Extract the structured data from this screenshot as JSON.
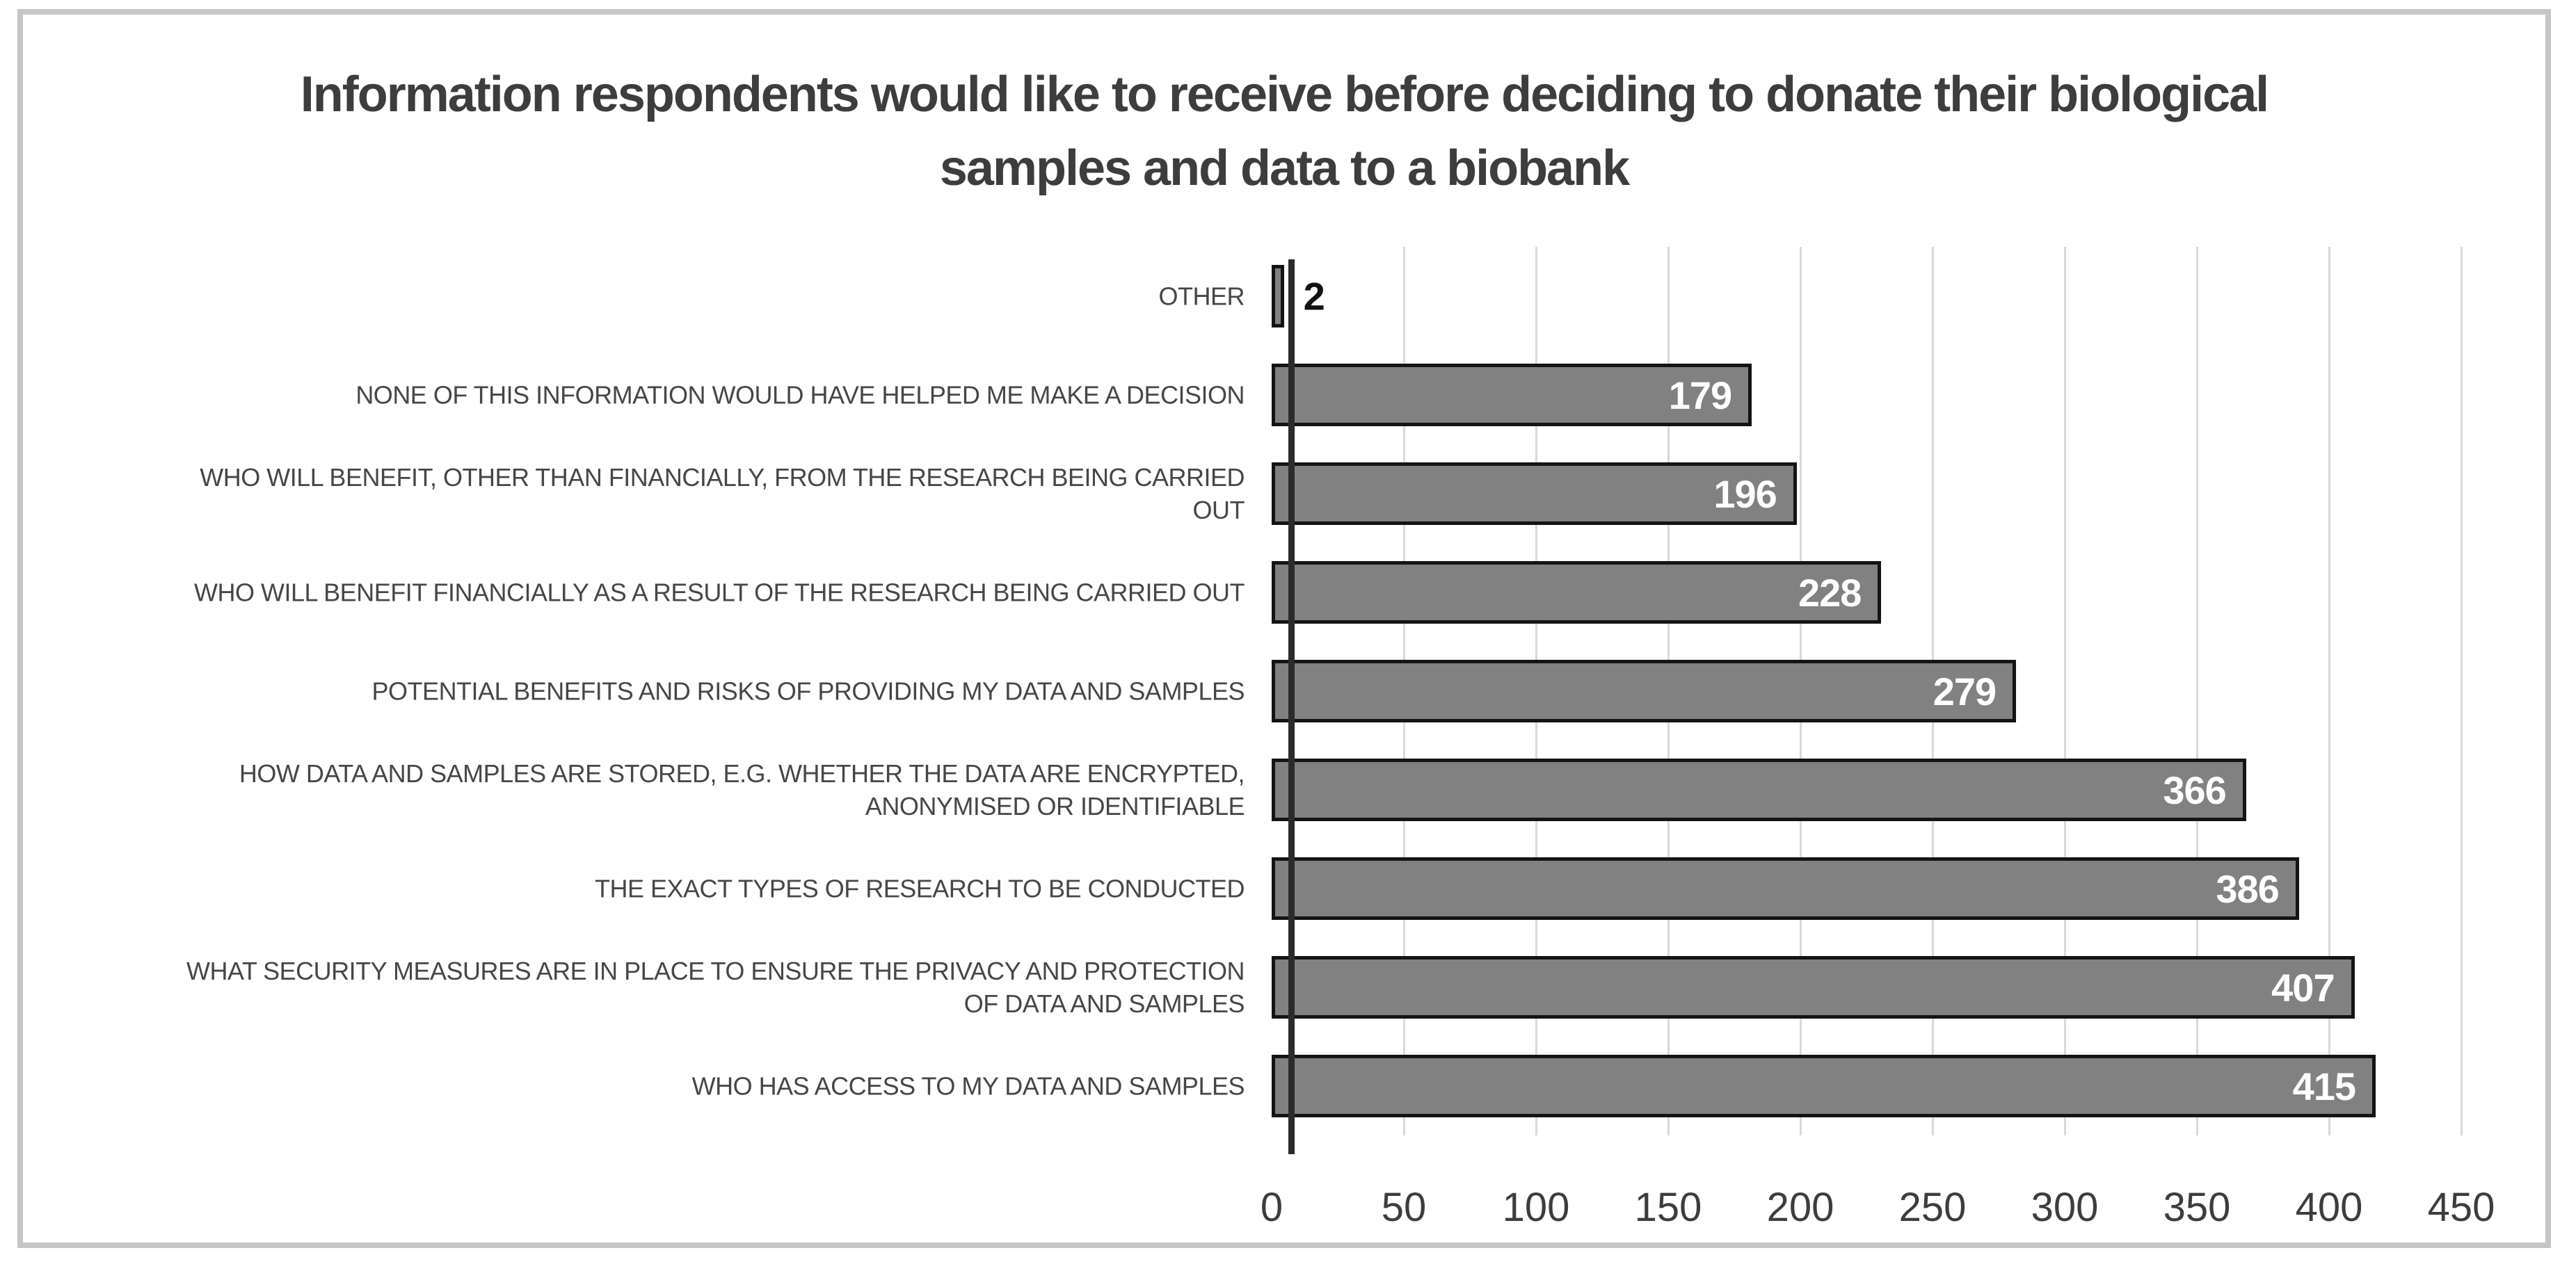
{
  "chart_data": {
    "type": "bar",
    "orientation": "horizontal",
    "title": "Information respondents would like to receive before deciding to donate their biological samples and data to a biobank",
    "categories": [
      "OTHER",
      "NONE OF THIS INFORMATION WOULD HAVE HELPED ME MAKE A DECISION",
      "WHO WILL BENEFIT, OTHER THAN FINANCIALLY, FROM THE RESEARCH BEING CARRIED OUT",
      "WHO WILL BENEFIT FINANCIALLY AS A RESULT OF THE RESEARCH BEING CARRIED OUT",
      "POTENTIAL BENEFITS AND RISKS OF PROVIDING MY DATA AND SAMPLES",
      "HOW DATA AND SAMPLES ARE STORED, E.G. WHETHER THE DATA ARE ENCRYPTED, ANONYMISED OR IDENTIFIABLE",
      "THE EXACT TYPES OF RESEARCH TO BE CONDUCTED",
      "WHAT SECURITY MEASURES ARE IN PLACE TO ENSURE THE PRIVACY AND PROTECTION OF DATA AND SAMPLES",
      "WHO HAS ACCESS TO MY DATA AND SAMPLES"
    ],
    "values": [
      2,
      179,
      196,
      228,
      279,
      366,
      386,
      407,
      415
    ],
    "xlabel": "",
    "ylabel": "",
    "xlim": [
      0,
      450
    ],
    "xticks": [
      0,
      50,
      100,
      150,
      200,
      250,
      300,
      350,
      400,
      450
    ],
    "grid": true,
    "legend": false,
    "value_label_style": "inside bar end, white bold; outside in black when bar too short",
    "colors": {
      "bar_fill": "#818181",
      "bar_border": "#141414",
      "value_label": "#ffffff",
      "value_label_outside": "#111111",
      "gridline": "#d9d9d9",
      "axis_line": "#2b2b2b",
      "text": "#3d3d3d",
      "category_text": "#464646",
      "frame_border": "#c6c6c6",
      "background": "#ffffff"
    }
  }
}
